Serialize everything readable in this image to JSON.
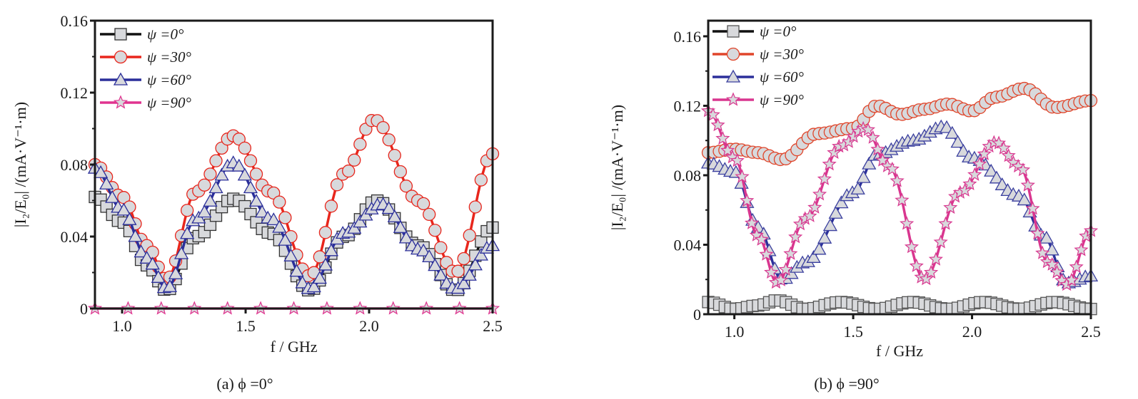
{
  "chart_data": [
    {
      "type": "line",
      "caption": "(a) ϕ =0°",
      "xlabel": "f / GHz",
      "ylabel": "|I₂/E₀| /(mA·V⁻¹·m)",
      "xlim": [
        0.89,
        2.5
      ],
      "ylim": [
        0,
        0.16
      ],
      "xticks": [
        1.0,
        1.5,
        2.0,
        2.5
      ],
      "xtick_labels": [
        "1.0",
        "1.5",
        "2.0",
        "2.5"
      ],
      "yticks": [
        0,
        0.04,
        0.08,
        0.12,
        0.16
      ],
      "ytick_labels": [
        "0",
        "0.04",
        "0.08",
        "0.12",
        "0.16"
      ],
      "legend_position": "top-left",
      "series": [
        {
          "name": "ψ =0°",
          "marker": "square",
          "line_color": "#111111",
          "edge_color": "#333333",
          "x": [
            0.89,
            1.0,
            1.1,
            1.18,
            1.3,
            1.45,
            1.6,
            1.76,
            1.9,
            2.03,
            2.2,
            2.35,
            2.5
          ],
          "y": [
            0.062,
            0.048,
            0.024,
            0.01,
            0.04,
            0.061,
            0.042,
            0.01,
            0.04,
            0.06,
            0.035,
            0.01,
            0.045
          ]
        },
        {
          "name": "ψ =30°",
          "marker": "circle",
          "line_color": "#e8261c",
          "edge_color": "#e8261c",
          "x": [
            0.89,
            1.0,
            1.1,
            1.18,
            1.3,
            1.45,
            1.6,
            1.76,
            1.9,
            2.02,
            2.2,
            2.35,
            2.5
          ],
          "y": [
            0.08,
            0.062,
            0.035,
            0.016,
            0.065,
            0.096,
            0.065,
            0.018,
            0.075,
            0.105,
            0.06,
            0.02,
            0.086
          ]
        },
        {
          "name": "ψ =60°",
          "marker": "triangle",
          "line_color": "#2b2f9a",
          "edge_color": "#2b2f9a",
          "x": [
            0.89,
            1.0,
            1.1,
            1.18,
            1.3,
            1.45,
            1.6,
            1.76,
            1.9,
            2.05,
            2.2,
            2.35,
            2.5
          ],
          "y": [
            0.078,
            0.055,
            0.028,
            0.011,
            0.05,
            0.081,
            0.05,
            0.011,
            0.042,
            0.058,
            0.033,
            0.011,
            0.035
          ]
        },
        {
          "name": "ψ =90°",
          "marker": "star",
          "line_color": "#e0338f",
          "edge_color": "#e0338f",
          "x": [
            0.89,
            1.0,
            1.2,
            1.4,
            1.6,
            1.8,
            2.0,
            2.2,
            2.4,
            2.5
          ],
          "y": [
            0,
            0,
            0,
            0,
            0,
            0,
            0,
            0,
            0,
            0
          ]
        }
      ]
    },
    {
      "type": "line",
      "caption": "(b) ϕ =90°",
      "xlabel": "f / GHz",
      "ylabel": "|I₂/E₀| /(mA·V⁻¹·m)",
      "xlim": [
        0.89,
        2.5
      ],
      "ylim": [
        0,
        0.169
      ],
      "xticks": [
        1.0,
        1.5,
        2.0,
        2.5
      ],
      "xtick_labels": [
        "1.0",
        "1.5",
        "2.0",
        "2.5"
      ],
      "yticks": [
        0,
        0.04,
        0.08,
        0.12,
        0.16
      ],
      "ytick_labels": [
        "0",
        "0.04",
        "0.08",
        "0.12",
        "0.16"
      ],
      "legend_position": "top-left",
      "series": [
        {
          "name": "ψ =0°",
          "marker": "square",
          "line_color": "#111111",
          "edge_color": "#555555",
          "x": [
            0.89,
            1.0,
            1.1,
            1.18,
            1.3,
            1.45,
            1.6,
            1.75,
            1.9,
            2.05,
            2.2,
            2.35,
            2.5
          ],
          "y": [
            0.007,
            0.003,
            0.005,
            0.008,
            0.003,
            0.007,
            0.003,
            0.007,
            0.003,
            0.007,
            0.003,
            0.007,
            0.003
          ]
        },
        {
          "name": "ψ =30°",
          "marker": "circle",
          "line_color": "#e0452a",
          "edge_color": "#e0452a",
          "x": [
            0.89,
            1.0,
            1.1,
            1.2,
            1.35,
            1.5,
            1.6,
            1.7,
            1.8,
            1.9,
            2.0,
            2.1,
            2.22,
            2.35,
            2.5
          ],
          "y": [
            0.093,
            0.095,
            0.093,
            0.089,
            0.104,
            0.107,
            0.12,
            0.115,
            0.118,
            0.121,
            0.117,
            0.125,
            0.13,
            0.119,
            0.123
          ]
        },
        {
          "name": "ψ =60°",
          "marker": "triangle",
          "line_color": "#2b2f9a",
          "edge_color": "#3a3f9f",
          "x": [
            0.89,
            1.0,
            1.1,
            1.2,
            1.3,
            1.5,
            1.6,
            1.75,
            1.88,
            2.0,
            2.2,
            2.3,
            2.4,
            2.5
          ],
          "y": [
            0.087,
            0.082,
            0.05,
            0.02,
            0.03,
            0.07,
            0.092,
            0.1,
            0.108,
            0.09,
            0.068,
            0.045,
            0.018,
            0.022
          ]
        },
        {
          "name": "ψ =90°",
          "marker": "star",
          "line_color": "#d9368f",
          "edge_color": "#d9368f",
          "x": [
            0.89,
            1.0,
            1.1,
            1.18,
            1.3,
            1.45,
            1.55,
            1.65,
            1.8,
            1.95,
            2.1,
            2.2,
            2.32,
            2.4,
            2.5
          ],
          "y": [
            0.117,
            0.09,
            0.045,
            0.018,
            0.055,
            0.097,
            0.107,
            0.085,
            0.02,
            0.07,
            0.099,
            0.085,
            0.03,
            0.017,
            0.048
          ]
        }
      ]
    }
  ]
}
